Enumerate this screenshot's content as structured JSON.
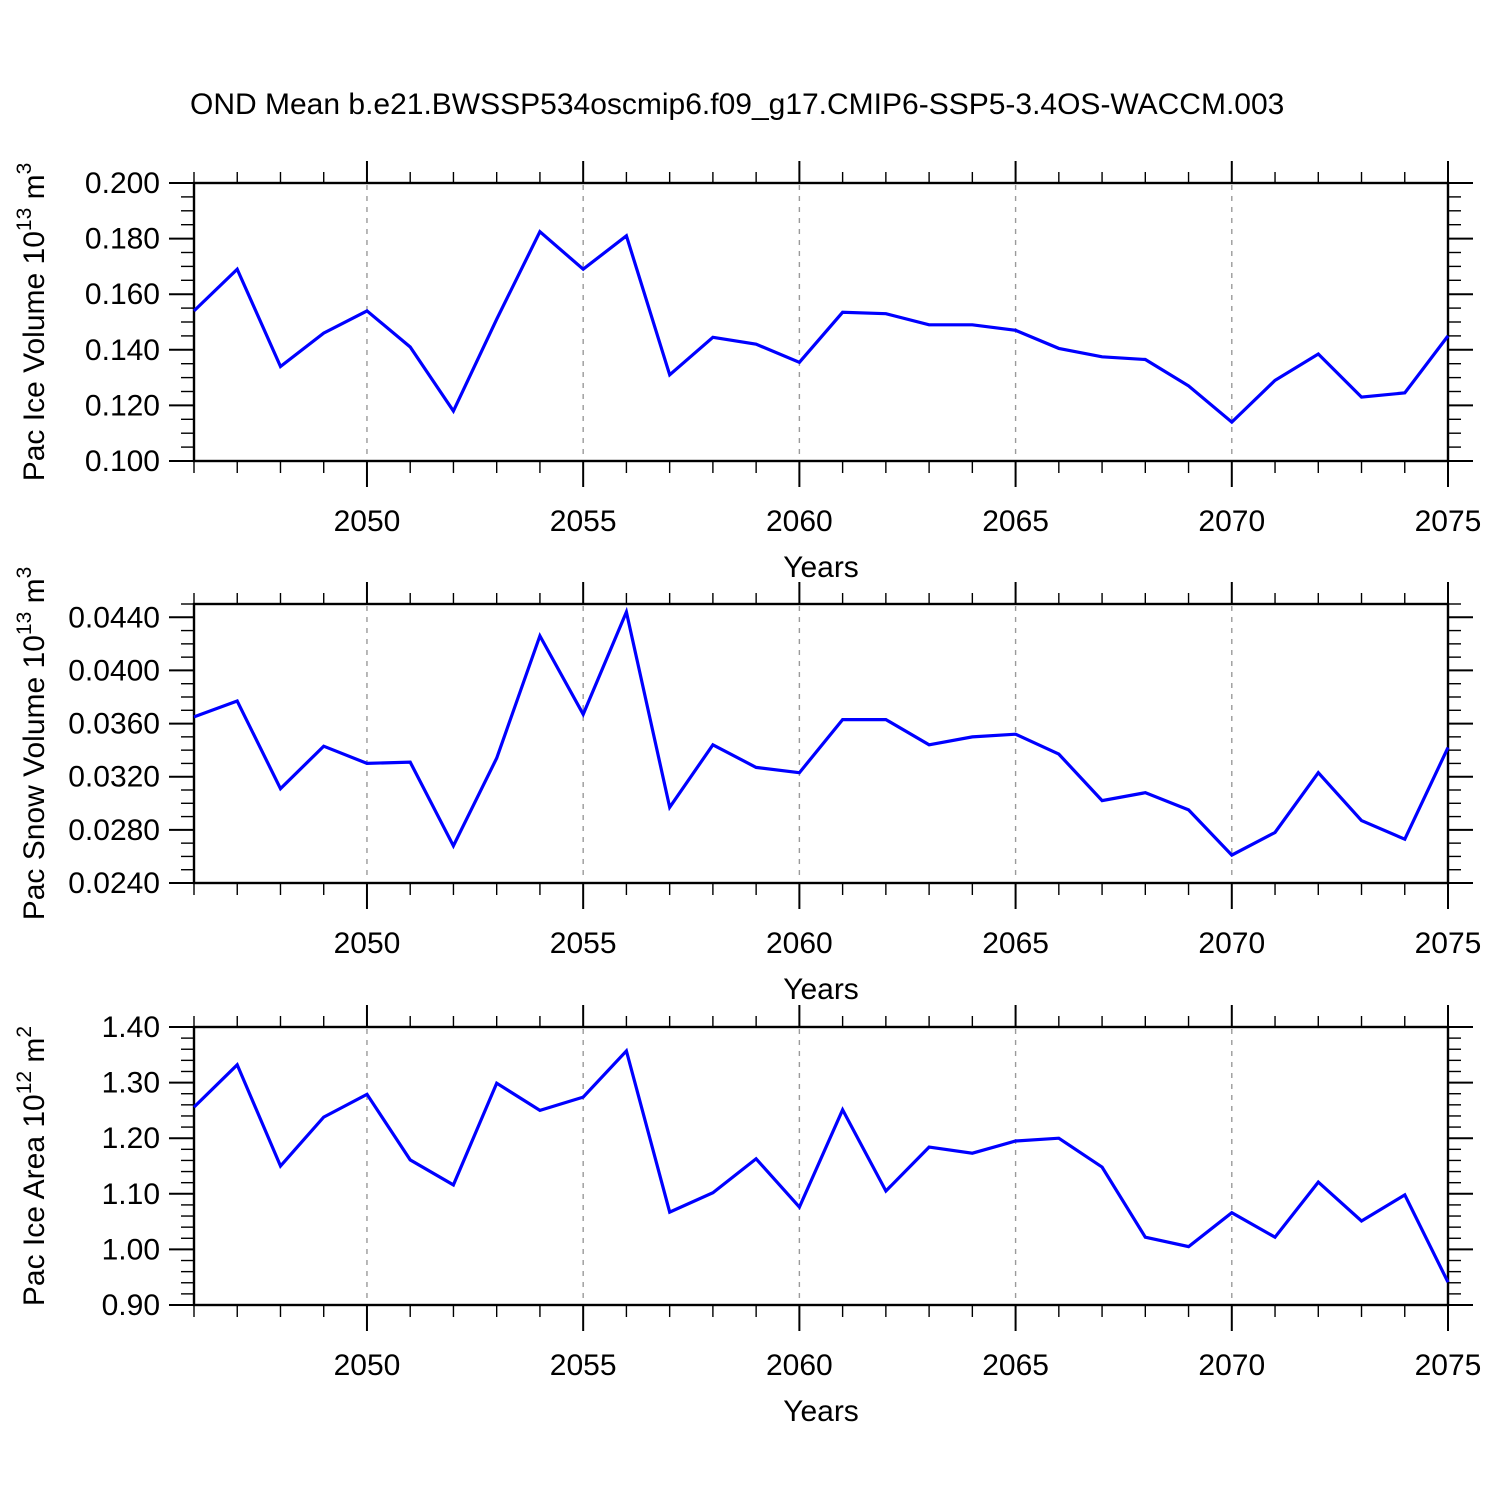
{
  "title": "OND Mean b.e21.BWSSP534oscmip6.f09_g17.CMIP6-SSP5-3.4OS-WACCM.003",
  "colors": {
    "series": "#0000ff",
    "axis": "#000000",
    "grid": "#9a9a9a",
    "background": "#ffffff"
  },
  "chart_data": {
    "type": "line",
    "title": "OND Mean b.e21.BWSSP534oscmip6.f09_g17.CMIP6-SSP5-3.4OS-WACCM.003",
    "xlabel": "Years",
    "x": [
      2046,
      2047,
      2048,
      2049,
      2050,
      2051,
      2052,
      2053,
      2054,
      2055,
      2056,
      2057,
      2058,
      2059,
      2060,
      2061,
      2062,
      2063,
      2064,
      2065,
      2066,
      2067,
      2068,
      2069,
      2070,
      2071,
      2072,
      2073,
      2074,
      2075
    ],
    "xlim": [
      2046,
      2075
    ],
    "x_major_ticks": [
      2050,
      2055,
      2060,
      2065,
      2070,
      2075
    ],
    "x_major_tick_labels": [
      "2050",
      "2055",
      "2060",
      "2065",
      "2070",
      "2075"
    ],
    "x_minor_step": 1,
    "grid_years": [
      2050,
      2055,
      2060,
      2065,
      2070
    ],
    "grid_style": "vertical-dashed",
    "legend": "none",
    "panels": [
      {
        "name": "pac-ice-volume",
        "ylabel_base": "Pac Ice Volume 10",
        "ylabel_exp": "13",
        "ylabel_unit": " m",
        "ylabel_unit_exp": "3",
        "xlabel": "Years",
        "ylim": [
          0.1,
          0.2
        ],
        "ytick_values": [
          0.1,
          0.12,
          0.14,
          0.16,
          0.18,
          0.2
        ],
        "ytick_labels": [
          "0.100",
          "0.120",
          "0.140",
          "0.160",
          "0.180",
          "0.200"
        ],
        "ytick_minor_step": 0.005,
        "values": [
          0.154,
          0.169,
          0.134,
          0.146,
          0.154,
          0.141,
          0.118,
          0.151,
          0.1825,
          0.169,
          0.181,
          0.131,
          0.1445,
          0.142,
          0.1355,
          0.1535,
          0.153,
          0.149,
          0.149,
          0.147,
          0.1405,
          0.1375,
          0.1365,
          0.127,
          0.114,
          0.129,
          0.1385,
          0.123,
          0.1245,
          0.145
        ]
      },
      {
        "name": "pac-snow-volume",
        "ylabel_base": "Pac Snow Volume 10",
        "ylabel_exp": "13",
        "ylabel_unit": " m",
        "ylabel_unit_exp": "3",
        "xlabel": "Years",
        "ylim": [
          0.024,
          0.045
        ],
        "ytick_values": [
          0.024,
          0.028,
          0.032,
          0.036,
          0.04,
          0.044
        ],
        "ytick_labels": [
          "0.0240",
          "0.0280",
          "0.0320",
          "0.0360",
          "0.0400",
          "0.0440"
        ],
        "ytick_minor_step": 0.001,
        "values": [
          0.0365,
          0.0377,
          0.0311,
          0.0343,
          0.033,
          0.0331,
          0.0268,
          0.0334,
          0.0426,
          0.0367,
          0.0444,
          0.0297,
          0.0344,
          0.0327,
          0.0323,
          0.0363,
          0.0363,
          0.0344,
          0.035,
          0.0352,
          0.0337,
          0.0302,
          0.0308,
          0.0295,
          0.0261,
          0.0278,
          0.0323,
          0.0287,
          0.0273,
          0.0342
        ]
      },
      {
        "name": "pac-ice-area",
        "ylabel_base": "Pac Ice Area 10",
        "ylabel_exp": "12",
        "ylabel_unit": " m",
        "ylabel_unit_exp": "2",
        "xlabel": "Years",
        "ylim": [
          0.9,
          1.4
        ],
        "ytick_values": [
          0.9,
          1.0,
          1.1,
          1.2,
          1.3,
          1.4
        ],
        "ytick_labels": [
          "0.90",
          "1.00",
          "1.10",
          "1.20",
          "1.30",
          "1.40"
        ],
        "ytick_minor_step": 0.02,
        "values": [
          1.256,
          1.332,
          1.15,
          1.238,
          1.279,
          1.161,
          1.116,
          1.299,
          1.25,
          1.274,
          1.357,
          1.067,
          1.102,
          1.163,
          1.076,
          1.251,
          1.105,
          1.184,
          1.173,
          1.195,
          1.2,
          1.148,
          1.022,
          1.005,
          1.066,
          1.022,
          1.121,
          1.051,
          1.098,
          0.941
        ]
      }
    ]
  }
}
